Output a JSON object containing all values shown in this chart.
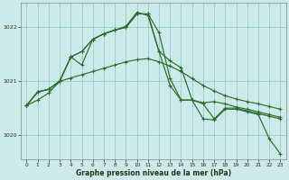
{
  "background_color": "#cceaea",
  "grid_color": "#99cccc",
  "line_color": "#2d6e2d",
  "xlabel": "Graphe pression niveau de la mer (hPa)",
  "ylim": [
    1019.55,
    1022.45
  ],
  "xlim": [
    -0.5,
    23.5
  ],
  "yticks": [
    1020,
    1021,
    1022
  ],
  "xticks": [
    0,
    1,
    2,
    3,
    4,
    5,
    6,
    7,
    8,
    9,
    10,
    11,
    12,
    13,
    14,
    15,
    16,
    17,
    18,
    19,
    20,
    21,
    22,
    23
  ],
  "series": [
    [
      1020.55,
      1020.65,
      1020.78,
      1021.0,
      1021.06,
      1021.12,
      1021.18,
      1021.24,
      1021.3,
      1021.36,
      1021.4,
      1021.42,
      1021.36,
      1021.28,
      1021.18,
      1021.05,
      1020.92,
      1020.82,
      1020.73,
      1020.67,
      1020.62,
      1020.58,
      1020.53,
      1020.48
    ],
    [
      1020.55,
      1020.8,
      1020.85,
      1021.0,
      1021.45,
      1021.55,
      1021.78,
      1021.88,
      1021.95,
      1022.0,
      1022.25,
      1022.25,
      1021.55,
      1021.38,
      1021.25,
      1020.65,
      1020.6,
      1020.62,
      1020.58,
      1020.52,
      1020.48,
      1020.43,
      1020.38,
      1020.33
    ],
    [
      1020.55,
      1020.8,
      1020.85,
      1021.0,
      1021.45,
      1021.3,
      1021.78,
      1021.88,
      1021.95,
      1022.02,
      1022.28,
      1022.22,
      1021.55,
      1020.92,
      1020.65,
      1020.65,
      1020.58,
      1020.3,
      1020.5,
      1020.5,
      1020.45,
      1020.4,
      1020.35,
      1020.3
    ],
    [
      1020.55,
      1020.8,
      1020.85,
      1021.0,
      1021.45,
      1021.55,
      1021.78,
      1021.88,
      1021.95,
      1022.0,
      1022.25,
      1022.25,
      1021.9,
      1021.05,
      1020.65,
      1020.65,
      1020.3,
      1020.28,
      1020.48,
      1020.48,
      1020.43,
      1020.38,
      1019.93,
      1019.65
    ]
  ]
}
